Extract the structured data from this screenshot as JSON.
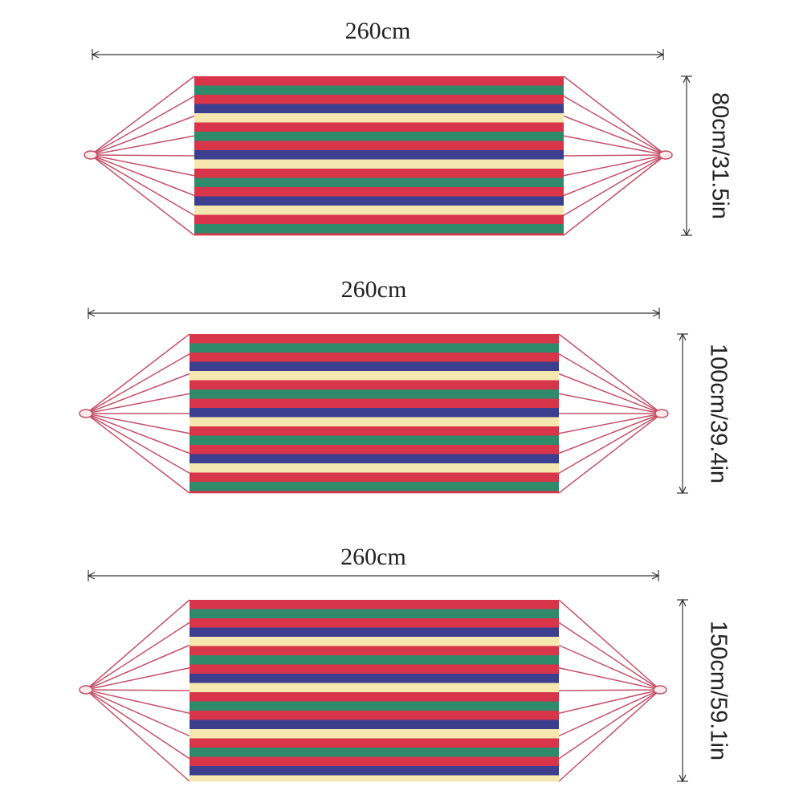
{
  "hammocks": [
    {
      "length": "260cm",
      "width": "80cm/31.5in"
    },
    {
      "length": "260cm",
      "width": "100cm/39.4in"
    },
    {
      "length": "260cm",
      "width": "150cm/59.1in"
    }
  ]
}
